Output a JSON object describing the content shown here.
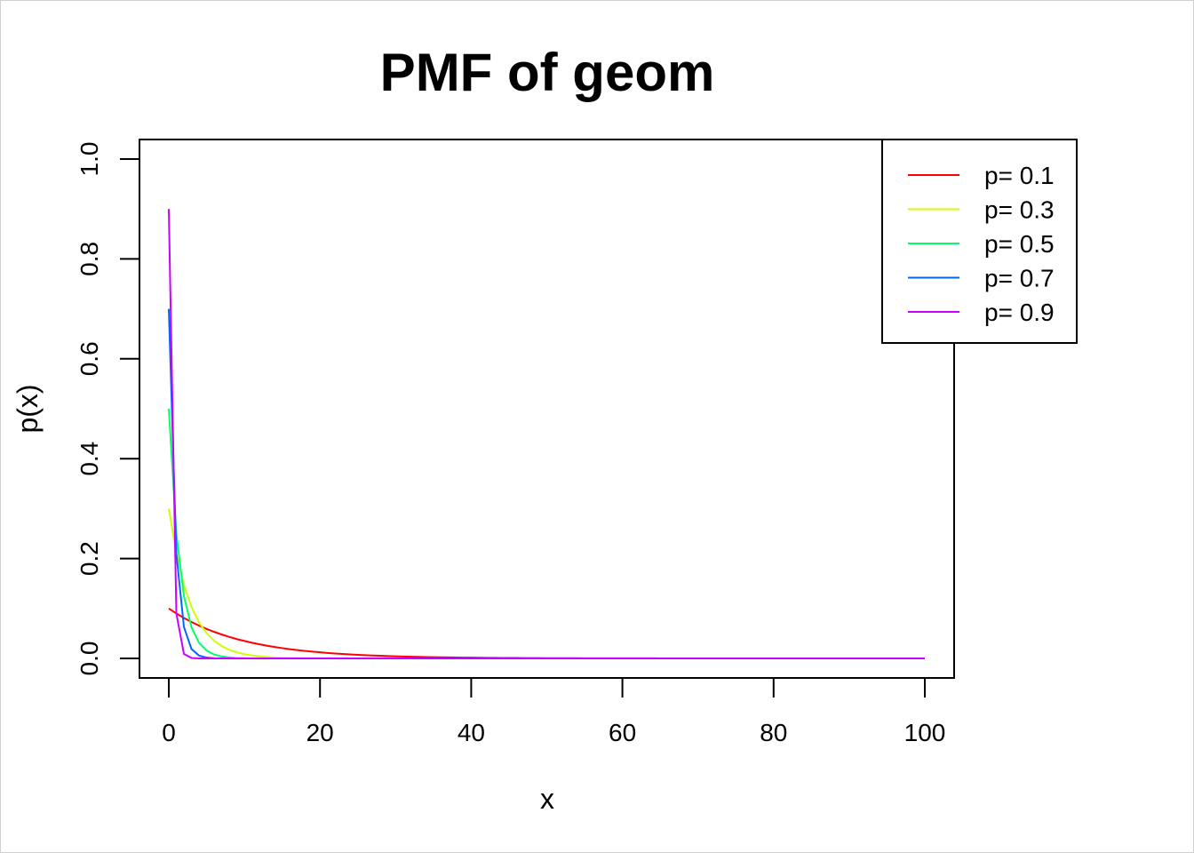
{
  "chart_data": {
    "type": "line",
    "title": "PMF of geom",
    "xlabel": "x",
    "ylabel": "p(x)",
    "xlim": [
      0,
      100
    ],
    "ylim": [
      0,
      1
    ],
    "xticks": [
      0,
      20,
      40,
      60,
      80,
      100
    ],
    "yticks": [
      0.0,
      0.2,
      0.4,
      0.6,
      0.8,
      1.0
    ],
    "xtick_labels": [
      "0",
      "20",
      "40",
      "60",
      "80",
      "100"
    ],
    "ytick_labels": [
      "0.0",
      "0.2",
      "0.4",
      "0.6",
      "0.8",
      "1.0"
    ],
    "grid": false,
    "legend_position": "top-right",
    "x": {
      "start": 0,
      "end": 100,
      "step": 1
    },
    "series": [
      {
        "name": "p= 0.1",
        "p": 0.1,
        "color": "#FF0000"
      },
      {
        "name": "p= 0.3",
        "p": 0.3,
        "color": "#CCFF00"
      },
      {
        "name": "p= 0.5",
        "p": 0.5,
        "color": "#00FF66"
      },
      {
        "name": "p= 0.7",
        "p": 0.7,
        "color": "#0066FF"
      },
      {
        "name": "p= 0.9",
        "p": 0.9,
        "color": "#CC00FF"
      }
    ]
  }
}
